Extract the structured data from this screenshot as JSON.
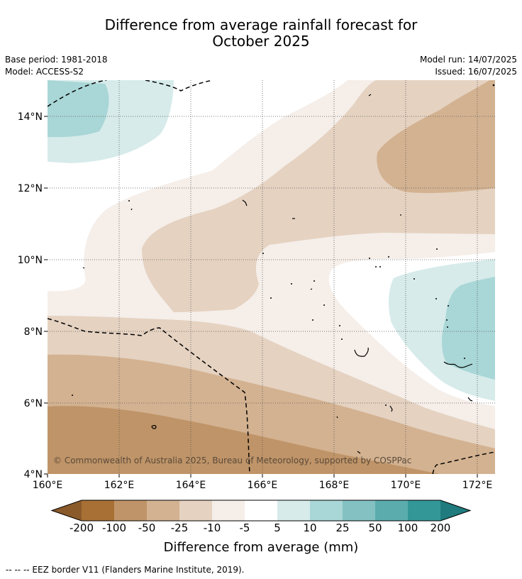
{
  "header": {
    "title_line1": "Difference from average rainfall forecast for",
    "title_line2": "October 2025",
    "base_period": "Base period: 1981-2018",
    "model": "Model: ACCESS-S2",
    "model_run": "Model run: 14/07/2025",
    "issued": "Issued: 16/07/2025"
  },
  "map": {
    "lat_labels": [
      "14°N",
      "12°N",
      "10°N",
      "8°N",
      "6°N",
      "4°N"
    ],
    "lon_labels": [
      "160°E",
      "162°E",
      "164°E",
      "166°E",
      "168°E",
      "170°E",
      "172°E"
    ],
    "copyright": "© Commonwealth of Australia 2025, Bureau of Meteorology, supported by COSPPac"
  },
  "colorbar": {
    "ticks": [
      "-200",
      "-100",
      "-50",
      "-25",
      "-10",
      "-5",
      "5",
      "10",
      "25",
      "50",
      "100",
      "200"
    ],
    "colors": [
      "#8b5a2b",
      "#a87035",
      "#bf9468",
      "#d3b291",
      "#e5d2c1",
      "#f5eee9",
      "#ffffff",
      "#d6ebea",
      "#a9d6d6",
      "#84c1c2",
      "#5aacad",
      "#339798",
      "#1f7b7d"
    ],
    "label": "Difference from average (mm)"
  },
  "legend": {
    "eez_note": "--  --  -- EEZ border V11 (Flanders Marine Institute, 2019)."
  }
}
